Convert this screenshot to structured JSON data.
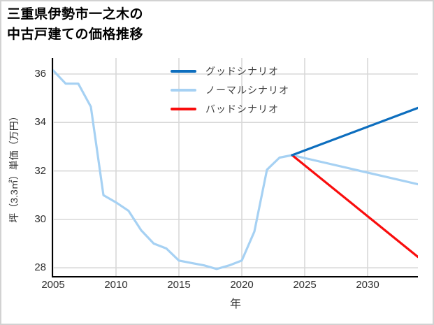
{
  "window": {
    "background": "#ffffff",
    "border_color": "#d2d2d2"
  },
  "title": {
    "line1": "三重県伊勢市一之木の",
    "line2": "中古戸建ての価格推移"
  },
  "colors": {
    "good_line": "#0d6ebe",
    "normal_line": "#a6d1f3",
    "bad_line": "#f90d0d",
    "grid": "#d8d8d8",
    "spine": "#000000",
    "tick_text": "#303030",
    "legend_text": "#3f3f3f"
  },
  "chart_data": {
    "type": "line",
    "title": "三重県伊勢市一之木の中古戸建ての価格推移",
    "xlabel": "年",
    "ylabel": "坪（3.3㎡）単価（万円）",
    "xlim": [
      2005,
      2034
    ],
    "ylim": [
      27.66,
      36.66
    ],
    "xticks": [
      2005,
      2010,
      2015,
      2020,
      2025,
      2030
    ],
    "yticks": [
      28,
      30,
      32,
      34,
      36
    ],
    "grid": true,
    "legend_position": "upper-center inside plot, no frame",
    "series": [
      {
        "name": "グッドシナリオ",
        "color": "#0d6ebe",
        "x": [
          2024,
          2034
        ],
        "values": [
          32.65,
          34.6
        ]
      },
      {
        "name": "ノーマルシナリオ",
        "color": "#a6d1f3",
        "x": [
          2005,
          2006,
          2007,
          2008,
          2009,
          2010,
          2011,
          2012,
          2013,
          2014,
          2015,
          2016,
          2017,
          2018,
          2019,
          2020,
          2021,
          2022,
          2023,
          2024,
          2034
        ],
        "values": [
          36.15,
          35.6,
          35.6,
          34.65,
          31.0,
          30.7,
          30.35,
          29.55,
          29.0,
          28.8,
          28.3,
          28.2,
          28.1,
          27.95,
          28.1,
          28.3,
          29.5,
          32.05,
          32.55,
          32.65,
          31.45
        ]
      },
      {
        "name": "バッドシナリオ",
        "color": "#f90d0d",
        "x": [
          2024,
          2034
        ],
        "values": [
          32.65,
          28.45
        ]
      }
    ]
  }
}
